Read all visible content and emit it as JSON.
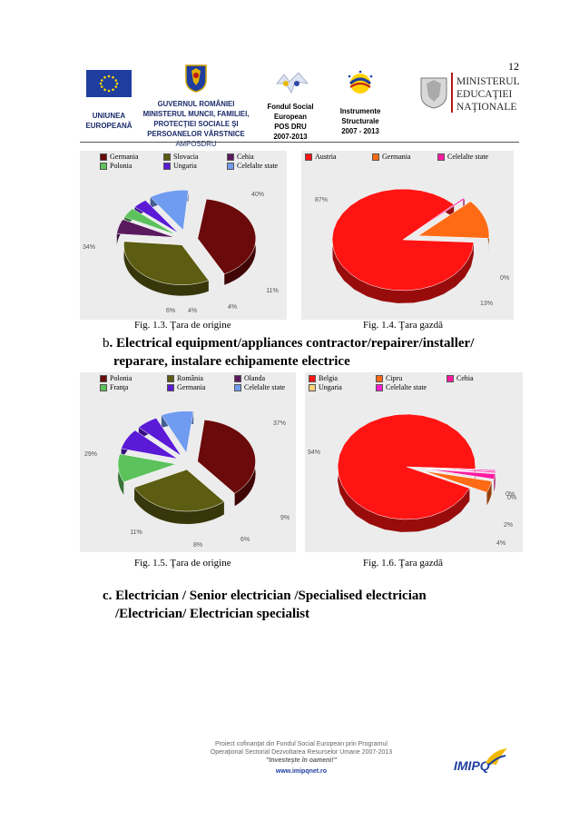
{
  "page_number": "12",
  "header": {
    "eu_label_1": "UNIUNEA",
    "eu_label_2": "EUROPEANĂ",
    "gov_line1": "GUVERNUL ROMÂNIEI",
    "gov_line2": "MINISTERUL MUNCII, FAMILIEI,",
    "gov_line3": "PROTECŢIEI SOCIALE ŞI",
    "gov_line4": "PERSOANELOR VÂRSTNICE",
    "gov_line5": "AMPOSDRU",
    "fse_line1": "Fondul Social",
    "fse_line2": "European",
    "fse_line3": "POS DRU",
    "fse_line4": "2007-2013",
    "is_line1": "Instrumente",
    "is_line2": "Structurale",
    "is_line3": "2007 - 2013",
    "men_line1": "MINISTERUL",
    "men_line2": "EDUCAŢIEI",
    "men_line3": "NAŢIONALE"
  },
  "colors": {
    "dark_red": "#6b0a0a",
    "olive": "#5c5c12",
    "purple_dark": "#5a1a5e",
    "green": "#5cc25c",
    "violet": "#5a1ad6",
    "light_blue": "#6f9bf0",
    "red": "#ff1414",
    "orange": "#ff6a14",
    "pink": "#ff1aa0",
    "chart_bg": "#ececec"
  },
  "charts": {
    "fig13": {
      "legend": [
        {
          "label": "Germania",
          "color": "#6b0a0a"
        },
        {
          "label": "Slovacia",
          "color": "#5c5c12"
        },
        {
          "label": "Cehia",
          "color": "#5a1a5e"
        },
        {
          "label": "Polonia",
          "color": "#5cc25c"
        },
        {
          "label": "Ungaria",
          "color": "#5a1ad6"
        },
        {
          "label": "Celelalte state",
          "color": "#6f9bf0"
        }
      ],
      "labels": [
        "40%",
        "34%",
        "6%",
        "4%",
        "4%",
        "11%"
      ],
      "caption": "Fig. 1.3. Ţara de origine"
    },
    "fig14": {
      "legend": [
        {
          "label": "Austria",
          "color": "#ff1414"
        },
        {
          "label": "Germania",
          "color": "#ff6a14"
        },
        {
          "label": "Celelalte state",
          "color": "#ff1aa0"
        }
      ],
      "labels": [
        "87%",
        "0%",
        "13%"
      ],
      "caption": "Fig. 1.4. Ţara gazdă"
    },
    "fig15": {
      "legend": [
        {
          "label": "Polonia",
          "color": "#6b0a0a"
        },
        {
          "label": "România",
          "color": "#5c5c12"
        },
        {
          "label": "Olanda",
          "color": "#5a1a5e"
        },
        {
          "label": "Franţa",
          "color": "#5cc25c"
        },
        {
          "label": "Germania",
          "color": "#5a1ad6"
        },
        {
          "label": "Celelalte state",
          "color": "#6f9bf0"
        }
      ],
      "labels": [
        "37%",
        "29%",
        "11%",
        "8%",
        "6%",
        "9%"
      ],
      "caption": "Fig. 1.5. Ţara de origine"
    },
    "fig16": {
      "legend": [
        {
          "label": "Belgia",
          "color": "#ff1414"
        },
        {
          "label": "Cipru",
          "color": "#ff6a14"
        },
        {
          "label": "Cehia",
          "color": "#ff1aa0"
        },
        {
          "label": "Ungaria",
          "color": "#ffd27a"
        },
        {
          "label": "Celelalte state",
          "color": "#ff1ad0"
        }
      ],
      "labels": [
        "94%",
        "0%",
        "0%",
        "2%",
        "4%"
      ],
      "caption": "Fig. 1.6. Ţara gazdă"
    }
  },
  "headings": {
    "b_letter": "b",
    "b_line1": ". Electrical equipment/appliances contractor/repairer/installer/",
    "b_line2": "reparare, instalare echipamente electrice",
    "c_line1": "c. Electrician / Senior electrician /Specialised electrician",
    "c_line2": "/Electrician/ Electrician specialist"
  },
  "footer": {
    "line1": "Proiect cofinanţat din Fondul Social European prin Programul",
    "line2": "Operaţional Sectorial Dezvoltarea Resurselor Umane 2007-2013",
    "line3": "\"Investeşte în oameni!\"",
    "line4": "www.imipqnet.ro",
    "logo_text": "IMIPQ"
  }
}
